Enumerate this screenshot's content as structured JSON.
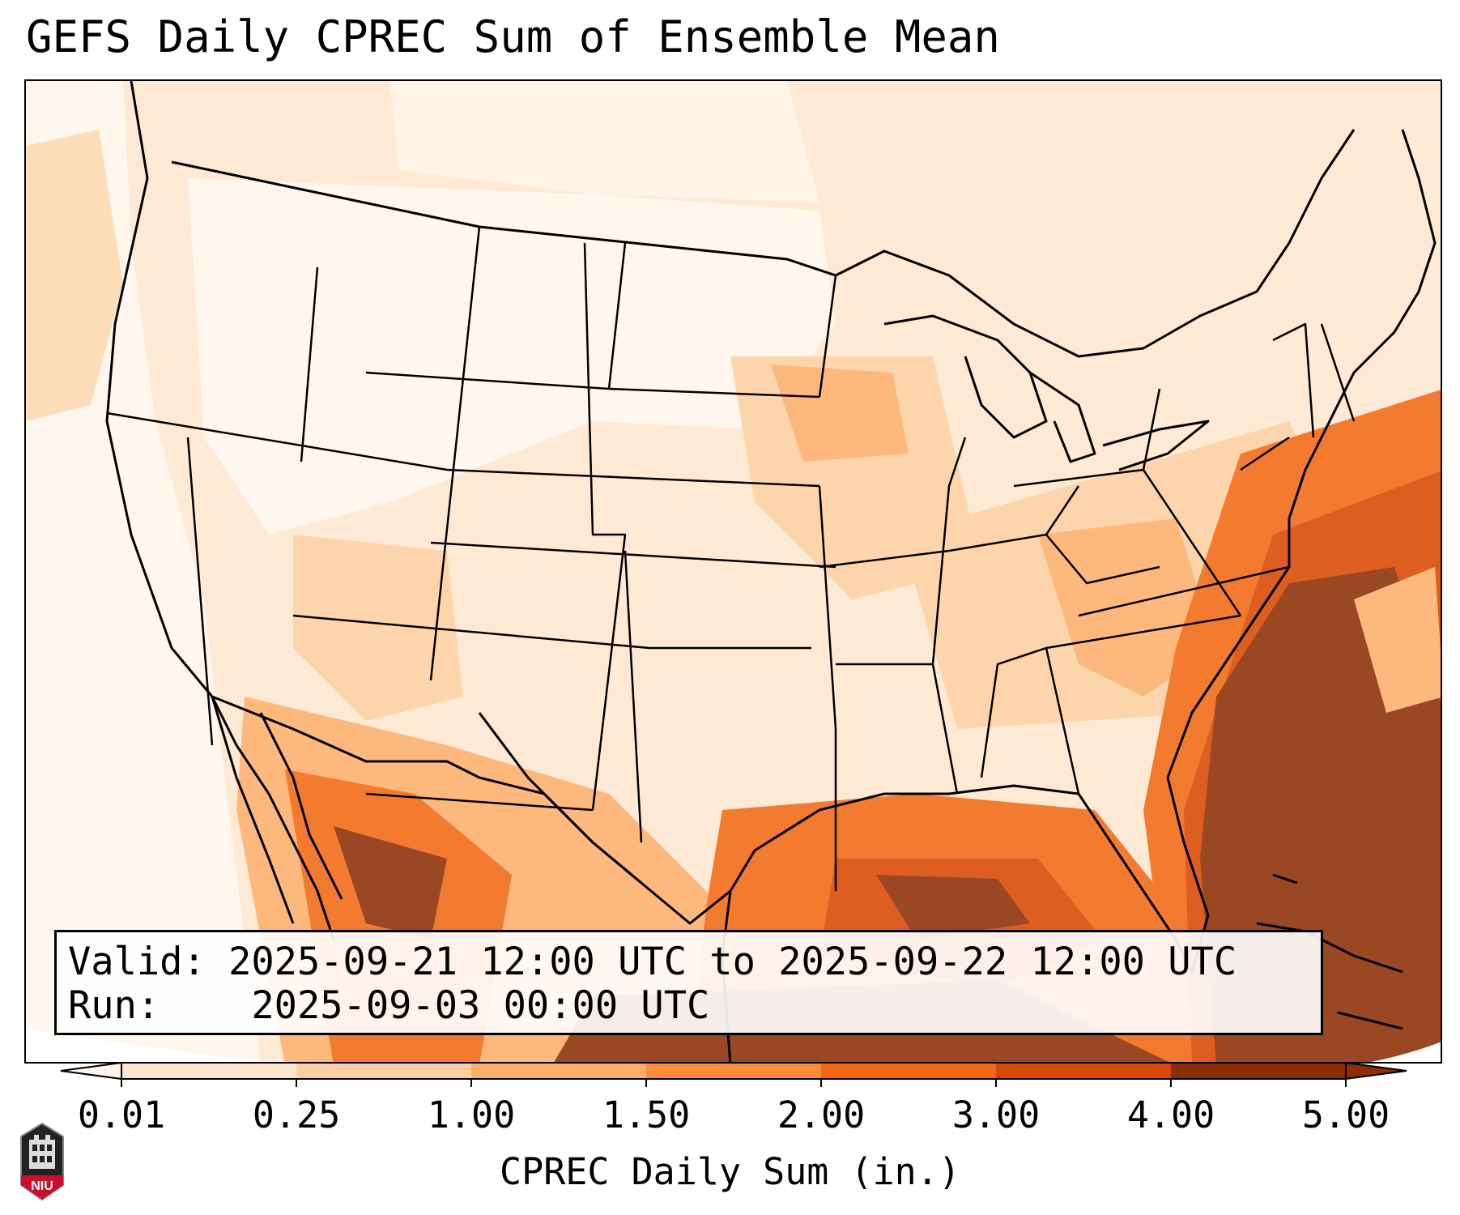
{
  "title": "GEFS Daily CPREC Sum of Ensemble Mean",
  "info": {
    "valid_label": "Valid:",
    "valid_value": "2025-09-21 12:00 UTC to 2025-09-22 12:00 UTC",
    "run_label": "Run:",
    "run_value": "2025-09-03 00:00 UTC"
  },
  "colorbar": {
    "label": "CPREC Daily Sum (in.)",
    "ticks": [
      "0.01",
      "0.25",
      "1.00",
      "1.50",
      "2.00",
      "3.00",
      "4.00",
      "5.00"
    ],
    "colors": [
      "#fff5eb",
      "#fee6ce",
      "#fdd0a2",
      "#fdae6b",
      "#fd8d3c",
      "#f16913",
      "#d94801",
      "#8c2d04"
    ],
    "extend": "both"
  },
  "logo": {
    "text": "NIU",
    "color": "#c8102e"
  },
  "map": {
    "projection": "lambert-conformal",
    "region": "CONUS",
    "field": "CPREC daily sum",
    "notes_visible": "heaviest totals over western Atlantic off Southeast coast, Gulf of Mexico and Sierra Madre Occidental"
  }
}
